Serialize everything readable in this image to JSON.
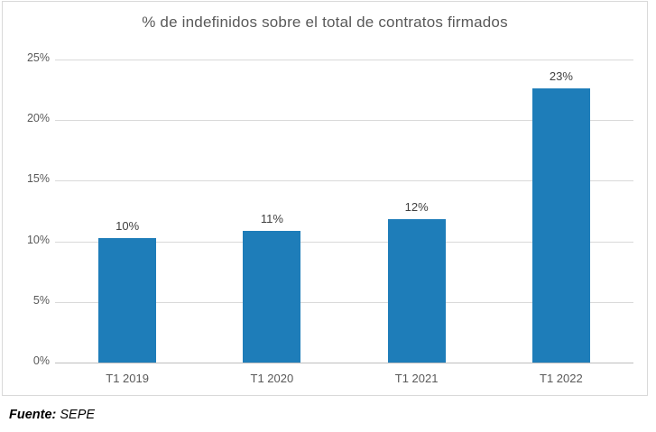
{
  "chart": {
    "title": "% de indefinidos sobre el total de contratos firmados",
    "source_label": "Fuente:",
    "source_value": " SEPE"
  },
  "chart_data": {
    "type": "bar",
    "title": "% de indefinidos sobre el total de contratos firmados",
    "categories": [
      "T1 2019",
      "T1 2020",
      "T1 2021",
      "T1 2022"
    ],
    "values": [
      10.3,
      10.9,
      11.8,
      22.6
    ],
    "data_labels": [
      "10%",
      "11%",
      "12%",
      "23%"
    ],
    "xlabel": "",
    "ylabel": "",
    "ylim": [
      0,
      25
    ],
    "ytick_values": [
      0,
      5,
      10,
      15,
      20,
      25
    ],
    "ytick_labels": [
      "0%",
      "5%",
      "10%",
      "15%",
      "20%",
      "25%"
    ],
    "grid": true,
    "legend": "none",
    "source": "Fuente: SEPE",
    "colors": {
      "bar": "#1e7db9",
      "title": "#595959",
      "tick_label": "#595959",
      "data_label": "#404040",
      "gridline": "#d9d9d9",
      "axis_line": "#bfbfbf",
      "frame_border": "#d9d9d9",
      "background": "#ffffff"
    }
  }
}
